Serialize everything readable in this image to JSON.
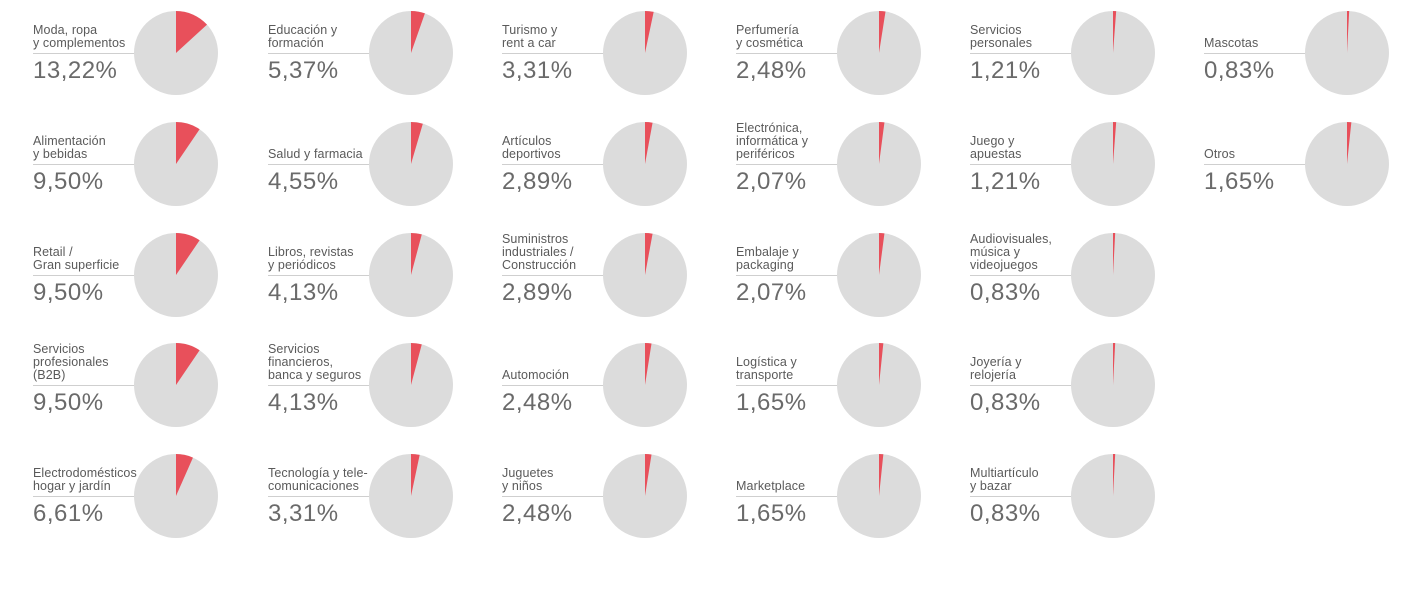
{
  "chart_data": {
    "type": "pie",
    "colors": {
      "slice": "#e8505b",
      "background": "#dcdcdc"
    },
    "items": [
      {
        "label": "Moda, ropa\ny complementos",
        "display": "13,22%",
        "value": 13.22
      },
      {
        "label": "Alimentación\ny bebidas",
        "display": "9,50%",
        "value": 9.5
      },
      {
        "label": "Retail /\nGran superficie",
        "display": "9,50%",
        "value": 9.5
      },
      {
        "label": "Servicios\nprofesionales\n(B2B)",
        "display": "9,50%",
        "value": 9.5
      },
      {
        "label": "Electrodomésticos\nhogar y jardín",
        "display": "6,61%",
        "value": 6.61
      },
      {
        "label": "Educación y\nformación",
        "display": "5,37%",
        "value": 5.37
      },
      {
        "label": "Salud y farmacia",
        "display": "4,55%",
        "value": 4.55
      },
      {
        "label": "Libros, revistas\ny periódicos",
        "display": "4,13%",
        "value": 4.13
      },
      {
        "label": "Servicios\nfinancieros,\nbanca y seguros",
        "display": "4,13%",
        "value": 4.13
      },
      {
        "label": "Tecnología y tele-\ncomunicaciones",
        "display": "3,31%",
        "value": 3.31
      },
      {
        "label": "Turismo y\nrent a car",
        "display": "3,31%",
        "value": 3.31
      },
      {
        "label": "Artículos\ndeportivos",
        "display": "2,89%",
        "value": 2.89
      },
      {
        "label": "Suministros\nindustriales /\nConstrucción",
        "display": "2,89%",
        "value": 2.89
      },
      {
        "label": "Automoción",
        "display": "2,48%",
        "value": 2.48
      },
      {
        "label": "Juguetes\ny niños",
        "display": "2,48%",
        "value": 2.48
      },
      {
        "label": "Perfumería\ny cosmética",
        "display": "2,48%",
        "value": 2.48
      },
      {
        "label": "Electrónica,\ninformática y\nperiféricos",
        "display": "2,07%",
        "value": 2.07
      },
      {
        "label": "Embalaje y\npackaging",
        "display": "2,07%",
        "value": 2.07
      },
      {
        "label": "Logística y\ntransporte",
        "display": "1,65%",
        "value": 1.65
      },
      {
        "label": "Marketplace",
        "display": "1,65%",
        "value": 1.65
      },
      {
        "label": "Servicios\npersonales",
        "display": "1,21%",
        "value": 1.21
      },
      {
        "label": "Juego y\napuestas",
        "display": "1,21%",
        "value": 1.21
      },
      {
        "label": "Audiovisuales,\nmúsica y\nvideojuegos",
        "display": "0,83%",
        "value": 0.83
      },
      {
        "label": "Joyería y\nrelojería",
        "display": "0,83%",
        "value": 0.83
      },
      {
        "label": "Multiartículo\ny bazar",
        "display": "0,83%",
        "value": 0.83
      },
      {
        "label": "Mascotas",
        "display": "0,83%",
        "value": 0.83
      },
      {
        "label": "Otros",
        "display": "1,65%",
        "value": 1.65
      }
    ]
  }
}
